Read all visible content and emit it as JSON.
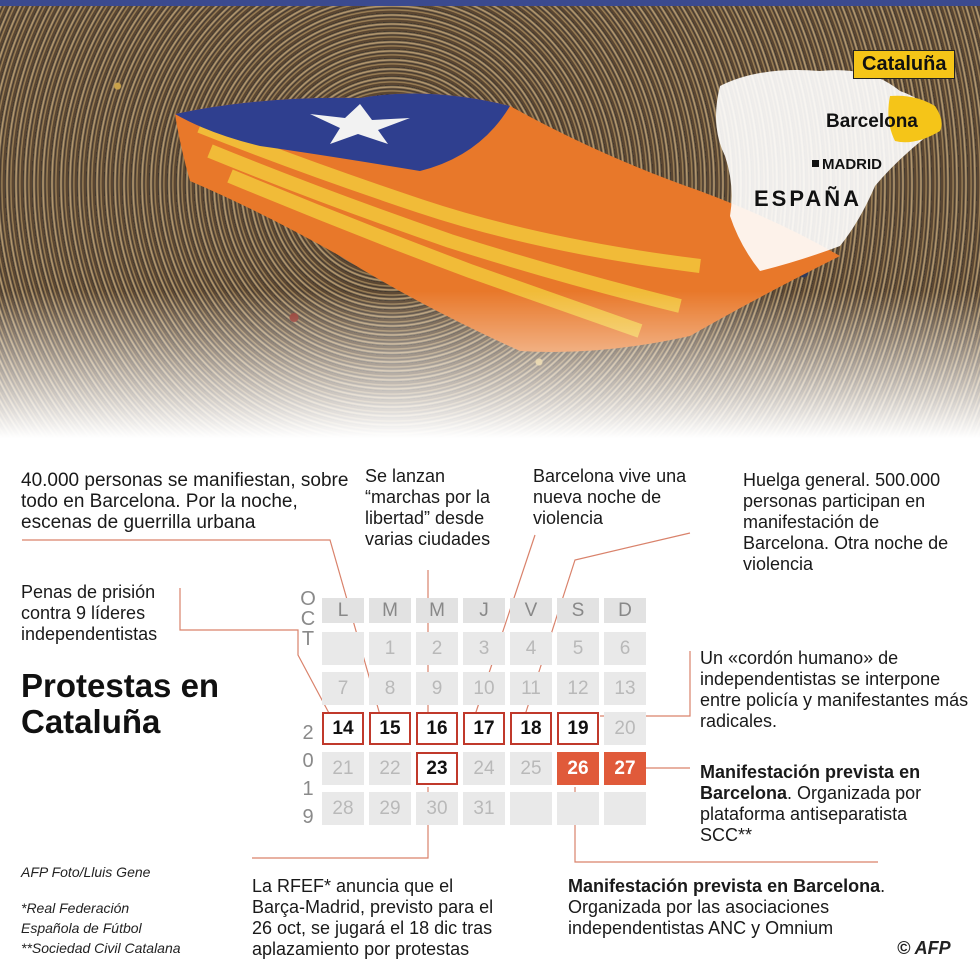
{
  "title": "Protestas en Cataluña",
  "map": {
    "region_tag": "Cataluña",
    "city": "Barcelona",
    "capital": "MADRID",
    "country": "ESPAÑA"
  },
  "annotations": {
    "a14": "Penas de prisión contra 9 líderes independentistas",
    "a15": "40.000 personas se manifiestan, sobre todo en Barcelona. Por la noche, escenas de guerrilla urbana",
    "a16": "Se lanzan “marchas por la libertad” desde varias ciudades",
    "a17": "Barcelona vive una nueva noche de violencia",
    "a18": "Huelga general. 500.000 personas participan en manifestación de Barcelona. Otra noche de violencia",
    "a19": "Un «cordón humano» de independentistas se interpone entre policía y manifestantes más radicales.",
    "a23": "La RFEF* anuncia que el Barça-Madrid, previsto para el 26 oct, se jugará el 18 dic tras aplazamiento por protestas",
    "a26_bold": "Manifestación prevista en Barcelona",
    "a26_rest": ". Organizada por las asociaciones independentistas ANC y Omnium",
    "a27_bold": "Manifestación prevista en Barcelona",
    "a27_rest": ". Organizada por plataforma antiseparatista SCC**"
  },
  "calendar": {
    "month_letters": [
      "O",
      "C",
      "T"
    ],
    "year_letters": [
      "2",
      "0",
      "1",
      "9"
    ],
    "weekdays": [
      "L",
      "M",
      "M",
      "J",
      "V",
      "S",
      "D"
    ],
    "weeks": [
      [
        "",
        "1",
        "2",
        "3",
        "4",
        "5",
        "6"
      ],
      [
        "7",
        "8",
        "9",
        "10",
        "11",
        "12",
        "13"
      ],
      [
        "14",
        "15",
        "16",
        "17",
        "18",
        "19",
        "20"
      ],
      [
        "21",
        "22",
        "23",
        "24",
        "25",
        "26",
        "27"
      ],
      [
        "28",
        "29",
        "30",
        "31",
        "",
        "",
        ""
      ]
    ],
    "highlighted": [
      "14",
      "15",
      "16",
      "17",
      "18",
      "19",
      "23"
    ],
    "planned": [
      "26",
      "27"
    ],
    "colors": {
      "highlight": "#c0392b",
      "planned": "#e05a3a",
      "cell": "#e9e9e9"
    }
  },
  "credits": {
    "photo": "AFP Foto/Lluis Gene",
    "note1": "*Real Federación",
    "note2": "Española de Fútbol",
    "note3": "**Sociedad Civil Catalana",
    "agency": "© AFP"
  }
}
